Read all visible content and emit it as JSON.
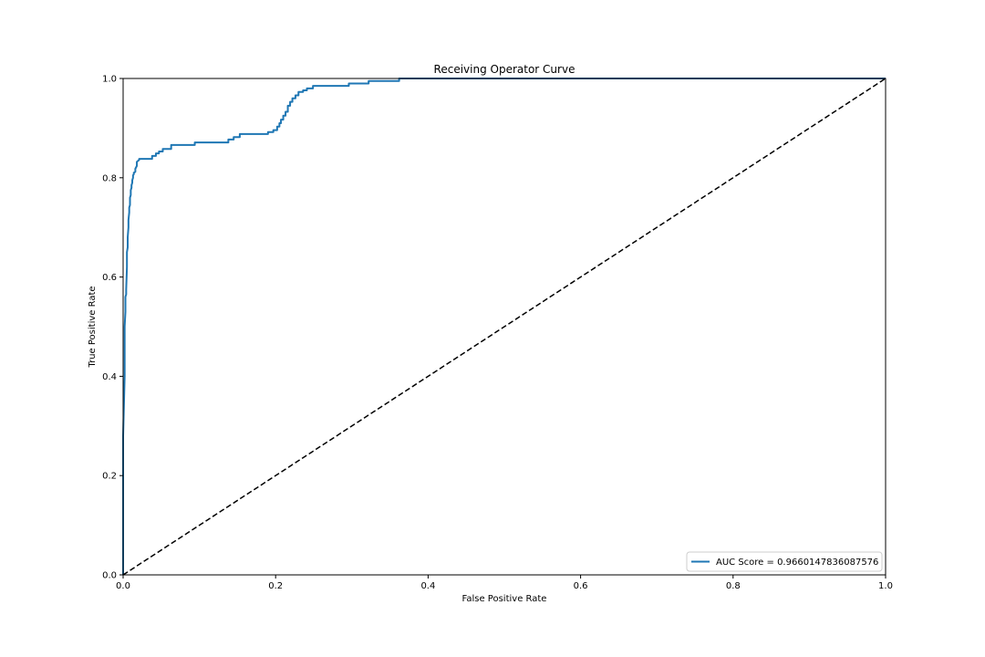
{
  "chart_data": {
    "type": "line",
    "title": "Receiving Operator Curve",
    "xlabel": "False Positive Rate",
    "ylabel": "True Positive Rate",
    "xlim": [
      0,
      1
    ],
    "ylim": [
      0,
      1
    ],
    "xticks": [
      "0.0",
      "0.2",
      "0.4",
      "0.6",
      "0.8",
      "1.0"
    ],
    "yticks": [
      "0.0",
      "0.2",
      "0.4",
      "0.6",
      "0.8",
      "1.0"
    ],
    "grid": false,
    "legend_position": "lower-right",
    "series": [
      {
        "name": "AUC Score = 0.9660147836087576",
        "color": "#1f77b4",
        "style": "solid",
        "x": [
          0.0,
          0.0,
          0.002,
          0.002,
          0.003,
          0.003,
          0.004,
          0.004,
          0.005,
          0.005,
          0.006,
          0.006,
          0.007,
          0.007,
          0.008,
          0.008,
          0.009,
          0.009,
          0.01,
          0.01,
          0.011,
          0.011,
          0.012,
          0.012,
          0.013,
          0.013,
          0.014,
          0.014,
          0.016,
          0.016,
          0.018,
          0.018,
          0.021,
          0.021,
          0.023,
          0.023,
          0.025,
          0.025,
          0.038,
          0.038,
          0.043,
          0.043,
          0.047,
          0.047,
          0.052,
          0.052,
          0.063,
          0.063,
          0.094,
          0.094,
          0.138,
          0.138,
          0.145,
          0.145,
          0.153,
          0.153,
          0.19,
          0.19,
          0.197,
          0.197,
          0.202,
          0.202,
          0.205,
          0.205,
          0.207,
          0.207,
          0.21,
          0.21,
          0.213,
          0.213,
          0.216,
          0.216,
          0.219,
          0.219,
          0.222,
          0.222,
          0.226,
          0.226,
          0.23,
          0.23,
          0.236,
          0.236,
          0.241,
          0.241,
          0.249,
          0.249,
          0.261,
          0.261,
          0.296,
          0.296,
          0.322,
          0.322,
          0.362,
          0.362,
          0.4,
          1.0
        ],
        "y": [
          0.0,
          0.28,
          0.4,
          0.5,
          0.53,
          0.56,
          0.565,
          0.575,
          0.62,
          0.65,
          0.66,
          0.68,
          0.7,
          0.715,
          0.73,
          0.74,
          0.745,
          0.76,
          0.765,
          0.775,
          0.78,
          0.785,
          0.79,
          0.795,
          0.8,
          0.805,
          0.807,
          0.81,
          0.812,
          0.818,
          0.824,
          0.832,
          0.836,
          0.838,
          0.838,
          0.838,
          0.838,
          0.838,
          0.838,
          0.844,
          0.844,
          0.849,
          0.849,
          0.853,
          0.853,
          0.858,
          0.858,
          0.866,
          0.866,
          0.871,
          0.871,
          0.877,
          0.877,
          0.882,
          0.882,
          0.888,
          0.888,
          0.892,
          0.892,
          0.896,
          0.896,
          0.903,
          0.903,
          0.91,
          0.91,
          0.917,
          0.917,
          0.925,
          0.925,
          0.933,
          0.933,
          0.945,
          0.945,
          0.953,
          0.953,
          0.96,
          0.96,
          0.966,
          0.966,
          0.973,
          0.973,
          0.976,
          0.976,
          0.98,
          0.98,
          0.985,
          0.985,
          0.985,
          0.985,
          0.99,
          0.99,
          0.995,
          0.995,
          1.0,
          1.0,
          1.0
        ]
      },
      {
        "name": "",
        "color": "#000000",
        "style": "dashed",
        "x": [
          0,
          1
        ],
        "y": [
          0,
          1
        ]
      }
    ]
  }
}
